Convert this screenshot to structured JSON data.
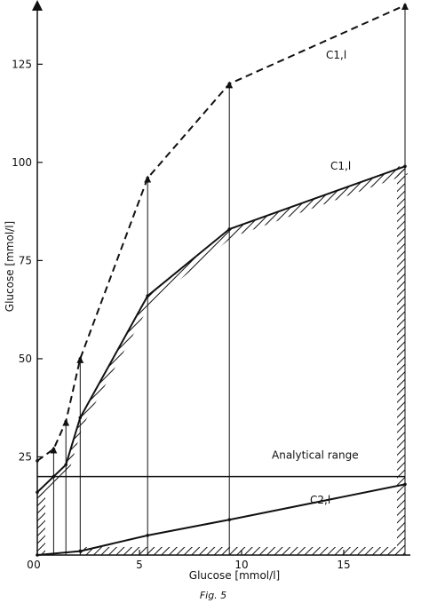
{
  "chart_data": {
    "type": "line",
    "xlabel": "Glucose [mmol/l]",
    "ylabel": "Glucose [mmol/l]",
    "xlim": [
      0,
      18
    ],
    "ylim": [
      0,
      140
    ],
    "x_ticks": [
      0,
      5,
      10,
      15
    ],
    "y_ticks": [
      25,
      50,
      75,
      100,
      125
    ],
    "grid": false,
    "series": [
      {
        "name": "C1,l",
        "style": "dashed",
        "x": [
          0,
          0.8,
          1.4,
          2.1,
          5.4,
          9.4,
          18
        ],
        "y": [
          24,
          27,
          34,
          50,
          96,
          120,
          140
        ]
      },
      {
        "name": "C1,l",
        "style": "solid-hatched",
        "x": [
          0,
          0.8,
          1.4,
          2.1,
          5.4,
          9.4,
          18
        ],
        "y": [
          16,
          20,
          23,
          35,
          66,
          83,
          99
        ]
      },
      {
        "name": "C2,l",
        "style": "solid",
        "x": [
          0,
          2.1,
          5.4,
          9.4,
          18
        ],
        "y": [
          0,
          1,
          5,
          9,
          18
        ]
      }
    ],
    "hlines": [
      {
        "y": 20,
        "label": "Analytical range"
      }
    ],
    "arrows_x": [
      0.8,
      1.4,
      2.1,
      5.4,
      9.4,
      18
    ],
    "caption": "Fig. 5"
  }
}
